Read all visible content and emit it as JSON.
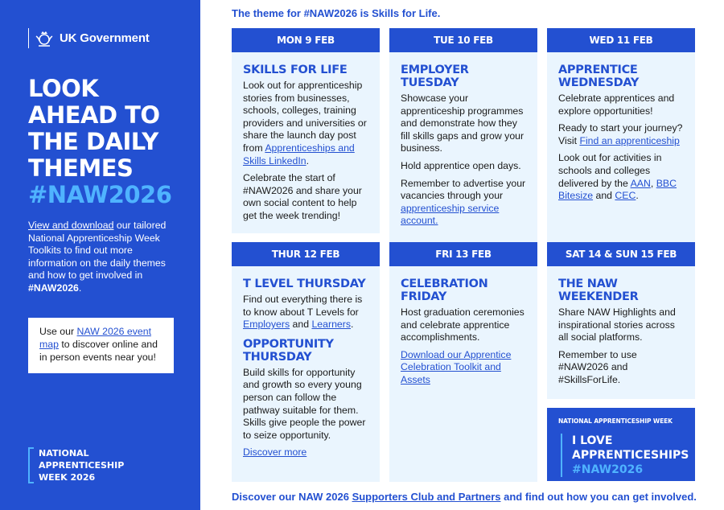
{
  "sidebar": {
    "logo_text": "UK Government",
    "headline": [
      "LOOK",
      "AHEAD TO",
      "THE DAILY",
      "THEMES"
    ],
    "hashtag": "#NAW2026",
    "intro_link": "View and download",
    "intro_text": " our tailored National Apprenticeship Week Toolkits to find out more information on the daily themes and how to get involved in ",
    "intro_hashtag": "#NAW2026",
    "intro_end": ".",
    "map_pre": "Use our ",
    "map_link": "NAW 2026 event map",
    "map_post": " to discover online and in person events near you!",
    "naw_logo": [
      "NATIONAL",
      "APPRENTICESHIP",
      "WEEK 2026"
    ]
  },
  "theme_line": "The theme for #NAW2026 is Skills for Life.",
  "days": [
    {
      "day": "MON 9 FEB",
      "blocks": [
        {
          "h": "SKILLS FOR LIFE"
        },
        {
          "p": [
            {
              "t": "Look out for apprenticeship stories from businesses, schools, colleges, training providers and universities or share the launch day post from "
            },
            {
              "t": "Apprenticeships and Skills LinkedIn",
              "link": true
            },
            {
              "t": "."
            }
          ]
        },
        {
          "p": [
            {
              "t": "Celebrate the start of #NAW2026 and share your own social content to help get the week trending!"
            }
          ]
        }
      ]
    },
    {
      "day": "TUE 10 FEB",
      "blocks": [
        {
          "h": "EMPLOYER TUESDAY"
        },
        {
          "p": [
            {
              "t": "Showcase your apprenticeship programmes and demonstrate how they fill skills gaps and grow your business."
            }
          ]
        },
        {
          "p": [
            {
              "t": "Hold apprentice open days."
            }
          ]
        },
        {
          "p": [
            {
              "t": "Remember to advertise your vacancies through your "
            },
            {
              "t": "apprenticeship service account.",
              "link": true
            }
          ]
        }
      ]
    },
    {
      "day": "WED 11 FEB",
      "blocks": [
        {
          "h": "APPRENTICE WEDNESDAY"
        },
        {
          "p": [
            {
              "t": "Celebrate apprentices and explore opportunities!"
            }
          ]
        },
        {
          "p": [
            {
              "t": "Ready to start your journey? Visit "
            },
            {
              "t": "Find an apprenticeship",
              "link": true
            }
          ]
        },
        {
          "p": [
            {
              "t": "Look out for activities in schools and colleges delivered by the "
            },
            {
              "t": "AAN",
              "link": true
            },
            {
              "t": ", "
            },
            {
              "t": "BBC Bitesize",
              "link": true
            },
            {
              "t": " and "
            },
            {
              "t": "CEC",
              "link": true
            },
            {
              "t": "."
            }
          ]
        }
      ]
    },
    {
      "day": "THUR 12 FEB",
      "blocks": [
        {
          "h": "T LEVEL THURSDAY"
        },
        {
          "p": [
            {
              "t": "Find out everything there is to know about T Levels for "
            },
            {
              "t": "Employers",
              "link": true
            },
            {
              "t": " and "
            },
            {
              "t": "Learners",
              "link": true
            },
            {
              "t": "."
            }
          ]
        },
        {
          "h": "OPPORTUNITY THURSDAY"
        },
        {
          "p": [
            {
              "t": "Build skills for opportunity and growth so every young person can follow the pathway suitable for them. Skills give people the power to seize opportunity."
            }
          ]
        },
        {
          "p": [
            {
              "t": "Discover more",
              "link": true
            }
          ]
        }
      ]
    },
    {
      "day": "FRI 13 FEB",
      "blocks": [
        {
          "h": "CELEBRATION FRIDAY"
        },
        {
          "p": [
            {
              "t": "Host graduation ceremonies and celebrate apprentice accomplishments."
            }
          ]
        },
        {
          "p": [
            {
              "t": "Download our Apprentice Celebration Toolkit and Assets",
              "link": true
            }
          ]
        }
      ]
    },
    {
      "day": "SAT 14 & SUN 15 FEB",
      "blocks": [
        {
          "h": "THE NAW WEEKENDER"
        },
        {
          "p": [
            {
              "t": "Share NAW Highlights and inspirational stories across all social platforms."
            }
          ]
        },
        {
          "p": [
            {
              "t": "Remember to use #NAW2026 and #SkillsForLife."
            }
          ]
        }
      ]
    }
  ],
  "banner": {
    "top": "NATIONAL APPRENTICESHIP WEEK",
    "line1": "I LOVE",
    "line2": "APPRENTICESHIPS",
    "hashtag": "#NAW2026"
  },
  "footer": {
    "pre": "Discover our NAW 2026 ",
    "link": "Supporters Club and Partners",
    "post": " and find out how you can get involved."
  },
  "colors": {
    "brand_blue": "#2350d1",
    "light_blue": "#4fb3ff",
    "card_bg": "#eaf5fe"
  }
}
